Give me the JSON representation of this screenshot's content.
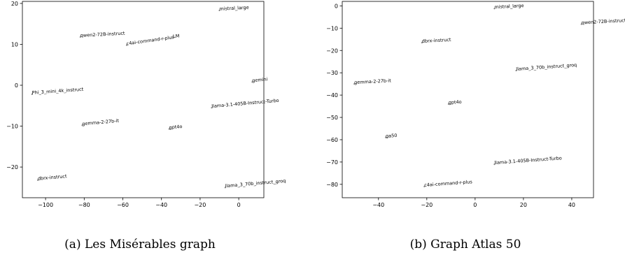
{
  "chart_data": [
    {
      "type": "scatter",
      "caption": "(a) Les Misérables graph",
      "xlim": [
        -112,
        13
      ],
      "ylim": [
        -27.5,
        20.5
      ],
      "xticks": [
        -100,
        -80,
        -60,
        -40,
        -20,
        0
      ],
      "yticks": [
        -20,
        -10,
        0,
        10,
        20
      ],
      "points": [
        {
          "label": "mistral_large",
          "x": -10,
          "y": 18.3,
          "rot": -3
        },
        {
          "label": "qwen2-72B-instruct",
          "x": -82,
          "y": 11.8,
          "rot": -3
        },
        {
          "label": "c4ai-command-r-plus",
          "x": -58,
          "y": 9.8,
          "rot": -8
        },
        {
          "label": "LM",
          "x": -34,
          "y": 11.6,
          "rot": -4
        },
        {
          "label": "gemini",
          "x": 7,
          "y": 0.8,
          "rot": -5
        },
        {
          "label": "Phi_3_mini_4k_instruct",
          "x": -107,
          "y": -2.2,
          "rot": -4
        },
        {
          "label": "llama-3.1-405B-Instruct-Turbo",
          "x": -14,
          "y": -5.5,
          "rot": -5
        },
        {
          "label": "gemma-2-27b-it",
          "x": -81,
          "y": -9.8,
          "rot": -5
        },
        {
          "label": "gpt4o",
          "x": -36,
          "y": -10.7,
          "rot": -5
        },
        {
          "label": "dbrx-instruct",
          "x": -104,
          "y": -23.2,
          "rot": -5
        },
        {
          "label": "llama_3_70b_instruct_groq",
          "x": -7,
          "y": -25,
          "rot": -5
        }
      ]
    },
    {
      "type": "scatter",
      "caption": "(b) Graph Atlas 50",
      "xlim": [
        -55,
        49
      ],
      "ylim": [
        -86,
        2
      ],
      "xticks": [
        -40,
        -20,
        0,
        20,
        40
      ],
      "yticks": [
        0,
        -10,
        -20,
        -30,
        -40,
        -50,
        -60,
        -70,
        -80
      ],
      "points": [
        {
          "label": "mistral_large",
          "x": 8,
          "y": -1.2,
          "rot": -3
        },
        {
          "label": "qwen2-72B-instruct",
          "x": 44,
          "y": -8.2,
          "rot": -3
        },
        {
          "label": "dbrx-instruct",
          "x": -22,
          "y": -16.5,
          "rot": -3
        },
        {
          "label": "llama_3_70b_instruct_groq",
          "x": 17,
          "y": -29,
          "rot": -4
        },
        {
          "label": "gemma-2-27b-it",
          "x": -50,
          "y": -35,
          "rot": -3
        },
        {
          "label": "gpt4o",
          "x": -11,
          "y": -44,
          "rot": -3
        },
        {
          "label": "ga50",
          "x": -37,
          "y": -59,
          "rot": -3
        },
        {
          "label": "llama-3.1-405B-Instruct-Turbo",
          "x": 8,
          "y": -71,
          "rot": -4
        },
        {
          "label": "c4ai-command-r-plus",
          "x": -21,
          "y": -81,
          "rot": -4
        }
      ]
    }
  ]
}
